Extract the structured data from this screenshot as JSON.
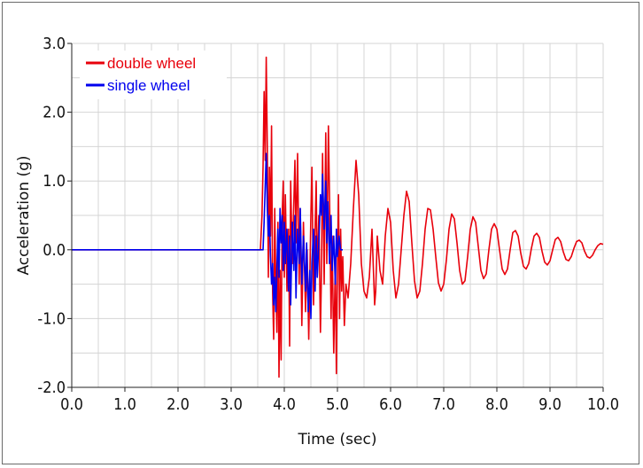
{
  "chart_data": {
    "type": "line",
    "title": "",
    "xlabel": "Time (sec)",
    "ylabel": "Acceleration (g)",
    "xlim": [
      0.0,
      10.0
    ],
    "ylim": [
      -2.0,
      3.0
    ],
    "x_ticks": [
      "0.0",
      "1.0",
      "2.0",
      "3.0",
      "4.0",
      "5.0",
      "6.0",
      "7.0",
      "8.0",
      "9.0",
      "10.0"
    ],
    "y_ticks": [
      "3.0",
      "2.0",
      "1.0",
      "0.0",
      "-1.0",
      "-2.0"
    ],
    "grid": true,
    "legend_position": "top-left",
    "series": [
      {
        "name": "double wheel",
        "color": "#e8000b",
        "points": [
          [
            0.0,
            0.0
          ],
          [
            3.55,
            0.0
          ],
          [
            3.58,
            0.5
          ],
          [
            3.6,
            1.2
          ],
          [
            3.62,
            2.3
          ],
          [
            3.64,
            1.3
          ],
          [
            3.66,
            2.8
          ],
          [
            3.68,
            1.5
          ],
          [
            3.7,
            -0.4
          ],
          [
            3.72,
            1.2
          ],
          [
            3.74,
            0.2
          ],
          [
            3.76,
            1.8
          ],
          [
            3.78,
            -0.6
          ],
          [
            3.8,
            -1.3
          ],
          [
            3.82,
            0.6
          ],
          [
            3.84,
            -0.5
          ],
          [
            3.86,
            -1.2
          ],
          [
            3.88,
            0.4
          ],
          [
            3.9,
            -1.85
          ],
          [
            3.92,
            -0.3
          ],
          [
            3.94,
            -1.6
          ],
          [
            3.96,
            0.5
          ],
          [
            3.98,
            1.0
          ],
          [
            4.0,
            -0.4
          ],
          [
            4.02,
            0.8
          ],
          [
            4.05,
            -0.6
          ],
          [
            4.08,
            0.3
          ],
          [
            4.1,
            -1.4
          ],
          [
            4.12,
            1.0
          ],
          [
            4.15,
            -0.2
          ],
          [
            4.18,
            0.7
          ],
          [
            4.2,
            1.3
          ],
          [
            4.22,
            0.1
          ],
          [
            4.25,
            1.4
          ],
          [
            4.28,
            -0.5
          ],
          [
            4.3,
            0.6
          ],
          [
            4.33,
            -1.1
          ],
          [
            4.36,
            0.4
          ],
          [
            4.4,
            -0.9
          ],
          [
            4.43,
            0.0
          ],
          [
            4.46,
            -1.3
          ],
          [
            4.5,
            0.5
          ],
          [
            4.52,
            1.2
          ],
          [
            4.55,
            -0.8
          ],
          [
            4.58,
            0.3
          ],
          [
            4.6,
            1.0
          ],
          [
            4.62,
            -0.4
          ],
          [
            4.65,
            0.5
          ],
          [
            4.68,
            -1.2
          ],
          [
            4.7,
            -0.3
          ],
          [
            4.72,
            1.4
          ],
          [
            4.75,
            -0.5
          ],
          [
            4.78,
            1.7
          ],
          [
            4.8,
            -0.2
          ],
          [
            4.83,
            1.8
          ],
          [
            4.86,
            0.3
          ],
          [
            4.88,
            -1.0
          ],
          [
            4.9,
            0.2
          ],
          [
            4.93,
            -1.5
          ],
          [
            4.96,
            -0.2
          ],
          [
            4.98,
            -1.8
          ],
          [
            5.0,
            -0.3
          ],
          [
            5.02,
            0.8
          ],
          [
            5.04,
            -1.0
          ],
          [
            5.06,
            0.3
          ],
          [
            5.08,
            -0.6
          ],
          [
            5.1,
            -0.1
          ],
          [
            5.13,
            -1.1
          ],
          [
            5.16,
            -0.5
          ],
          [
            5.2,
            -0.7
          ],
          [
            5.25,
            -0.2
          ],
          [
            5.3,
            0.6
          ],
          [
            5.35,
            1.3
          ],
          [
            5.4,
            0.8
          ],
          [
            5.45,
            -0.2
          ],
          [
            5.5,
            -0.6
          ],
          [
            5.55,
            -0.7
          ],
          [
            5.6,
            -0.4
          ],
          [
            5.65,
            0.3
          ],
          [
            5.7,
            -0.8
          ],
          [
            5.72,
            -0.6
          ],
          [
            5.75,
            0.2
          ],
          [
            5.8,
            -0.3
          ],
          [
            5.85,
            -0.5
          ],
          [
            5.9,
            0.2
          ],
          [
            5.95,
            0.6
          ],
          [
            6.0,
            0.4
          ],
          [
            6.05,
            -0.3
          ],
          [
            6.1,
            -0.7
          ],
          [
            6.15,
            -0.5
          ],
          [
            6.25,
            0.5
          ],
          [
            6.3,
            0.85
          ],
          [
            6.35,
            0.7
          ],
          [
            6.4,
            0.1
          ],
          [
            6.45,
            -0.45
          ],
          [
            6.5,
            -0.7
          ],
          [
            6.55,
            -0.6
          ],
          [
            6.6,
            -0.2
          ],
          [
            6.65,
            0.3
          ],
          [
            6.7,
            0.6
          ],
          [
            6.75,
            0.58
          ],
          [
            6.8,
            0.3
          ],
          [
            6.85,
            -0.1
          ],
          [
            6.9,
            -0.48
          ],
          [
            6.95,
            -0.6
          ],
          [
            7.0,
            -0.5
          ],
          [
            7.05,
            -0.15
          ],
          [
            7.1,
            0.3
          ],
          [
            7.15,
            0.52
          ],
          [
            7.2,
            0.45
          ],
          [
            7.25,
            0.1
          ],
          [
            7.3,
            -0.3
          ],
          [
            7.35,
            -0.5
          ],
          [
            7.4,
            -0.45
          ],
          [
            7.45,
            -0.1
          ],
          [
            7.5,
            0.3
          ],
          [
            7.55,
            0.48
          ],
          [
            7.6,
            0.4
          ],
          [
            7.65,
            0.05
          ],
          [
            7.7,
            -0.3
          ],
          [
            7.75,
            -0.42
          ],
          [
            7.8,
            -0.35
          ],
          [
            7.85,
            0.0
          ],
          [
            7.9,
            0.3
          ],
          [
            7.95,
            0.38
          ],
          [
            8.0,
            0.3
          ],
          [
            8.05,
            0.0
          ],
          [
            8.1,
            -0.28
          ],
          [
            8.15,
            -0.36
          ],
          [
            8.2,
            -0.28
          ],
          [
            8.25,
            0.0
          ],
          [
            8.3,
            0.25
          ],
          [
            8.35,
            0.28
          ],
          [
            8.4,
            0.2
          ],
          [
            8.45,
            -0.05
          ],
          [
            8.5,
            -0.24
          ],
          [
            8.55,
            -0.28
          ],
          [
            8.6,
            -0.2
          ],
          [
            8.65,
            0.02
          ],
          [
            8.7,
            0.2
          ],
          [
            8.75,
            0.24
          ],
          [
            8.8,
            0.18
          ],
          [
            8.85,
            -0.02
          ],
          [
            8.9,
            -0.18
          ],
          [
            8.95,
            -0.22
          ],
          [
            9.0,
            -0.16
          ],
          [
            9.05,
            0.0
          ],
          [
            9.1,
            0.15
          ],
          [
            9.15,
            0.18
          ],
          [
            9.2,
            0.12
          ],
          [
            9.25,
            -0.03
          ],
          [
            9.3,
            -0.14
          ],
          [
            9.35,
            -0.16
          ],
          [
            9.4,
            -0.1
          ],
          [
            9.45,
            0.02
          ],
          [
            9.5,
            0.12
          ],
          [
            9.55,
            0.14
          ],
          [
            9.6,
            0.1
          ],
          [
            9.65,
            -0.02
          ],
          [
            9.7,
            -0.1
          ],
          [
            9.75,
            -0.12
          ],
          [
            9.8,
            -0.08
          ],
          [
            9.85,
            0.0
          ],
          [
            9.9,
            0.06
          ],
          [
            9.95,
            0.09
          ],
          [
            10.0,
            0.08
          ]
        ]
      },
      {
        "name": "single wheel",
        "color": "#0000ee",
        "points": [
          [
            0.0,
            0.0
          ],
          [
            3.6,
            0.0
          ],
          [
            3.62,
            0.4
          ],
          [
            3.64,
            0.9
          ],
          [
            3.66,
            1.4
          ],
          [
            3.68,
            0.6
          ],
          [
            3.7,
            0.2
          ],
          [
            3.72,
            0.5
          ],
          [
            3.74,
            -0.1
          ],
          [
            3.76,
            -0.5
          ],
          [
            3.78,
            -0.2
          ],
          [
            3.8,
            -0.8
          ],
          [
            3.82,
            -0.4
          ],
          [
            3.84,
            -0.9
          ],
          [
            3.86,
            -0.3
          ],
          [
            3.88,
            0.3
          ],
          [
            3.9,
            -0.4
          ],
          [
            3.92,
            0.6
          ],
          [
            3.94,
            0.1
          ],
          [
            3.96,
            0.5
          ],
          [
            3.98,
            -0.3
          ],
          [
            4.0,
            0.4
          ],
          [
            4.02,
            -0.2
          ],
          [
            4.05,
            0.3
          ],
          [
            4.08,
            -0.6
          ],
          [
            4.1,
            0.2
          ],
          [
            4.12,
            -0.8
          ],
          [
            4.15,
            0.4
          ],
          [
            4.18,
            -0.3
          ],
          [
            4.2,
            0.5
          ],
          [
            4.22,
            -0.7
          ],
          [
            4.25,
            0.3
          ],
          [
            4.28,
            -0.2
          ],
          [
            4.3,
            0.6
          ],
          [
            4.33,
            -0.5
          ],
          [
            4.36,
            0.2
          ],
          [
            4.4,
            -0.6
          ],
          [
            4.42,
            0.1
          ],
          [
            4.45,
            -0.9
          ],
          [
            4.48,
            -0.3
          ],
          [
            4.5,
            -1.0
          ],
          [
            4.52,
            -0.2
          ],
          [
            4.55,
            0.3
          ],
          [
            4.58,
            -0.6
          ],
          [
            4.6,
            0.2
          ],
          [
            4.62,
            -0.4
          ],
          [
            4.65,
            0.1
          ],
          [
            4.68,
            0.8
          ],
          [
            4.7,
            0.5
          ],
          [
            4.72,
            1.1
          ],
          [
            4.75,
            0.3
          ],
          [
            4.78,
            1.0
          ],
          [
            4.8,
            0.1
          ],
          [
            4.82,
            0.7
          ],
          [
            4.85,
            -0.2
          ],
          [
            4.88,
            0.5
          ],
          [
            4.9,
            -0.3
          ],
          [
            4.93,
            0.2
          ],
          [
            4.96,
            -0.5
          ],
          [
            4.98,
            0.3
          ],
          [
            5.0,
            -0.1
          ],
          [
            5.03,
            0.2
          ],
          [
            5.06,
            0.0
          ],
          [
            5.1,
            0.0
          ]
        ]
      }
    ]
  }
}
